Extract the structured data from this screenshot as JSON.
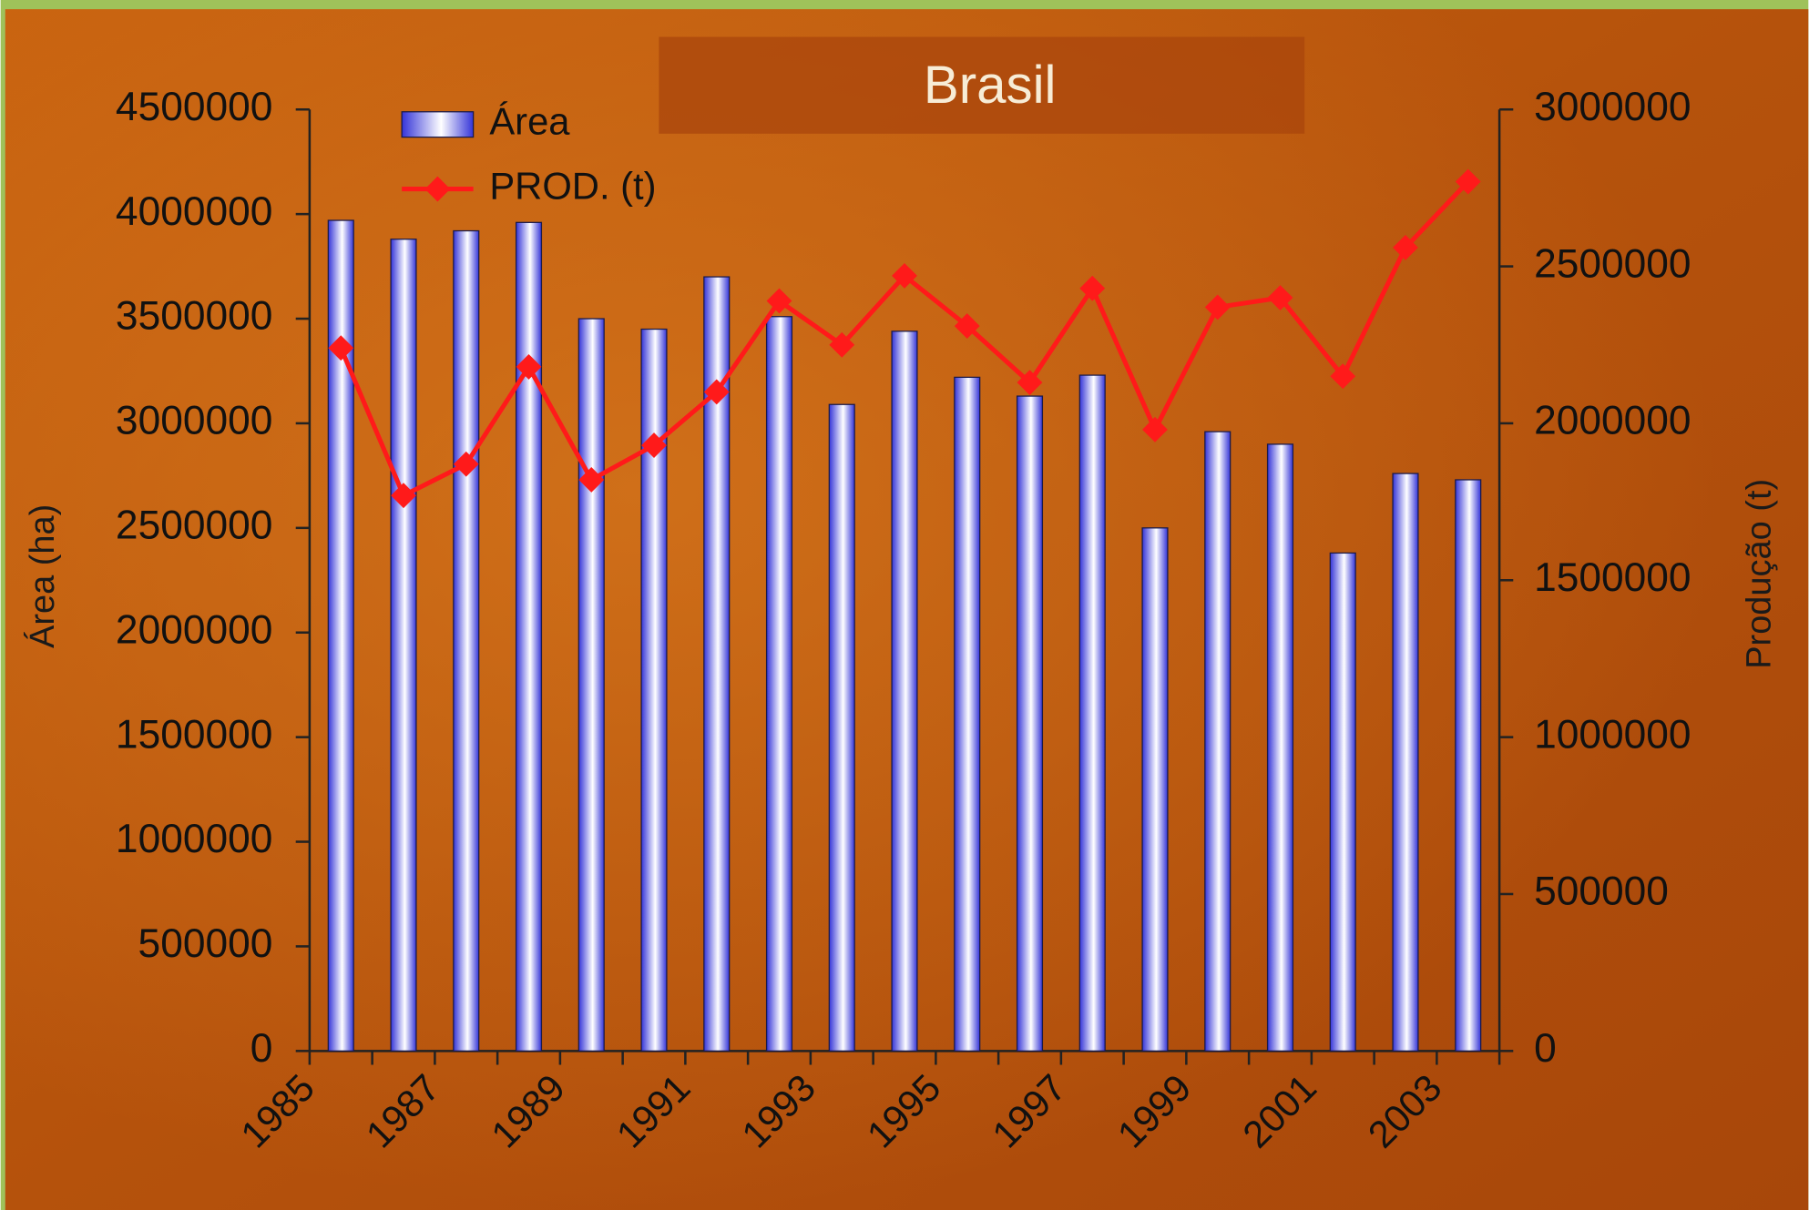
{
  "chart_data": {
    "type": "bar",
    "title": "Brasil",
    "y_label": "Área (ha)",
    "y2_label": "Produção (t)",
    "categories": [
      "1985",
      null,
      "1987",
      null,
      "1989",
      null,
      "1991",
      null,
      "1993",
      null,
      "1995",
      null,
      "1997",
      null,
      "1999",
      null,
      "2001",
      null,
      "2003"
    ],
    "series": [
      {
        "name": "Área",
        "type": "bar",
        "color": "#3434d8",
        "values": [
          3970000,
          3880000,
          3920000,
          3960000,
          3500000,
          3450000,
          3700000,
          3510000,
          3090000,
          3440000,
          3220000,
          3130000,
          3230000,
          2500000,
          2960000,
          2900000,
          2380000,
          2760000,
          2730000
        ]
      },
      {
        "name": "PROD. (t)",
        "type": "line",
        "color": "#ff1a1a",
        "axis": "y2",
        "values": [
          2240000,
          1770000,
          1870000,
          2180000,
          1820000,
          1930000,
          2100000,
          2390000,
          2250000,
          2470000,
          2310000,
          2130000,
          2430000,
          1980000,
          2370000,
          2400000,
          2150000,
          2560000,
          2770000
        ]
      }
    ],
    "ylim": [
      0,
      4500000
    ],
    "yticks": [
      0,
      500000,
      1000000,
      1500000,
      2000000,
      2500000,
      3000000,
      3500000,
      4000000,
      4500000
    ],
    "y2lim": [
      0,
      3000000
    ],
    "y2ticks": [
      0,
      500000,
      1000000,
      1500000,
      2000000,
      2500000,
      3000000
    ],
    "legend": "top-left",
    "grid": false
  }
}
